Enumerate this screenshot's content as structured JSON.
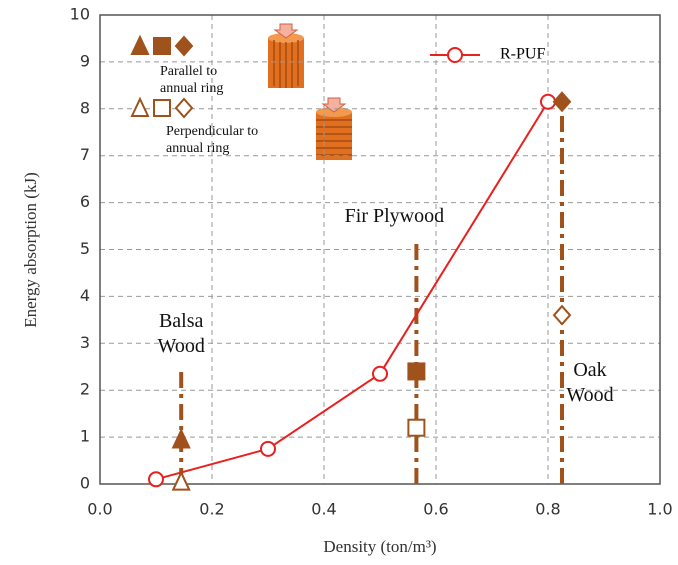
{
  "chart_data": {
    "type": "line",
    "xlabel": "Density (ton/m³)",
    "ylabel": "Energy absorption (kJ)",
    "xlim": [
      0,
      1
    ],
    "ylim": [
      0,
      10
    ],
    "xticks": [
      {
        "value": 0,
        "label": "0.0"
      },
      0.2,
      0.4,
      0.6,
      0.8,
      {
        "value": 1,
        "label": "1.0"
      }
    ],
    "yticks": [
      0,
      1,
      2,
      3,
      4,
      5,
      6,
      7,
      8,
      9,
      10
    ],
    "grid": true,
    "legend": "upper right",
    "series": [
      {
        "name": "R-PUF",
        "color": "#e8201f",
        "x": [
          0.1,
          0.3,
          0.5,
          0.8
        ],
        "values": [
          0.1,
          0.75,
          2.35,
          8.15
        ],
        "markers": [
          "circle",
          "circle",
          "circle",
          "circle"
        ],
        "filled": false,
        "line": true
      },
      {
        "name": "Parallel to annual ring",
        "color": "#a0521d",
        "x": [
          0.145,
          0.565,
          0.825
        ],
        "values": [
          0.95,
          2.4,
          8.15
        ],
        "markers": [
          "triangle",
          "square",
          "diamond"
        ],
        "filled": true,
        "line": false
      },
      {
        "name": "Perpendicular to annual ring",
        "color": "#a0521d",
        "x": [
          0.145,
          0.565,
          0.825
        ],
        "values": [
          0.05,
          1.2,
          3.6
        ],
        "markers": [
          "triangle",
          "square",
          "diamond"
        ],
        "filled": false,
        "line": false
      }
    ],
    "woods": [
      {
        "name": "Balsa Wood",
        "x": 0.145,
        "top": 2.4
      },
      {
        "name": "Fir Plywood",
        "x": 0.565,
        "top": 5.2
      },
      {
        "name": "Oak Wood",
        "x": 0.825,
        "top": 8.1
      }
    ]
  }
}
